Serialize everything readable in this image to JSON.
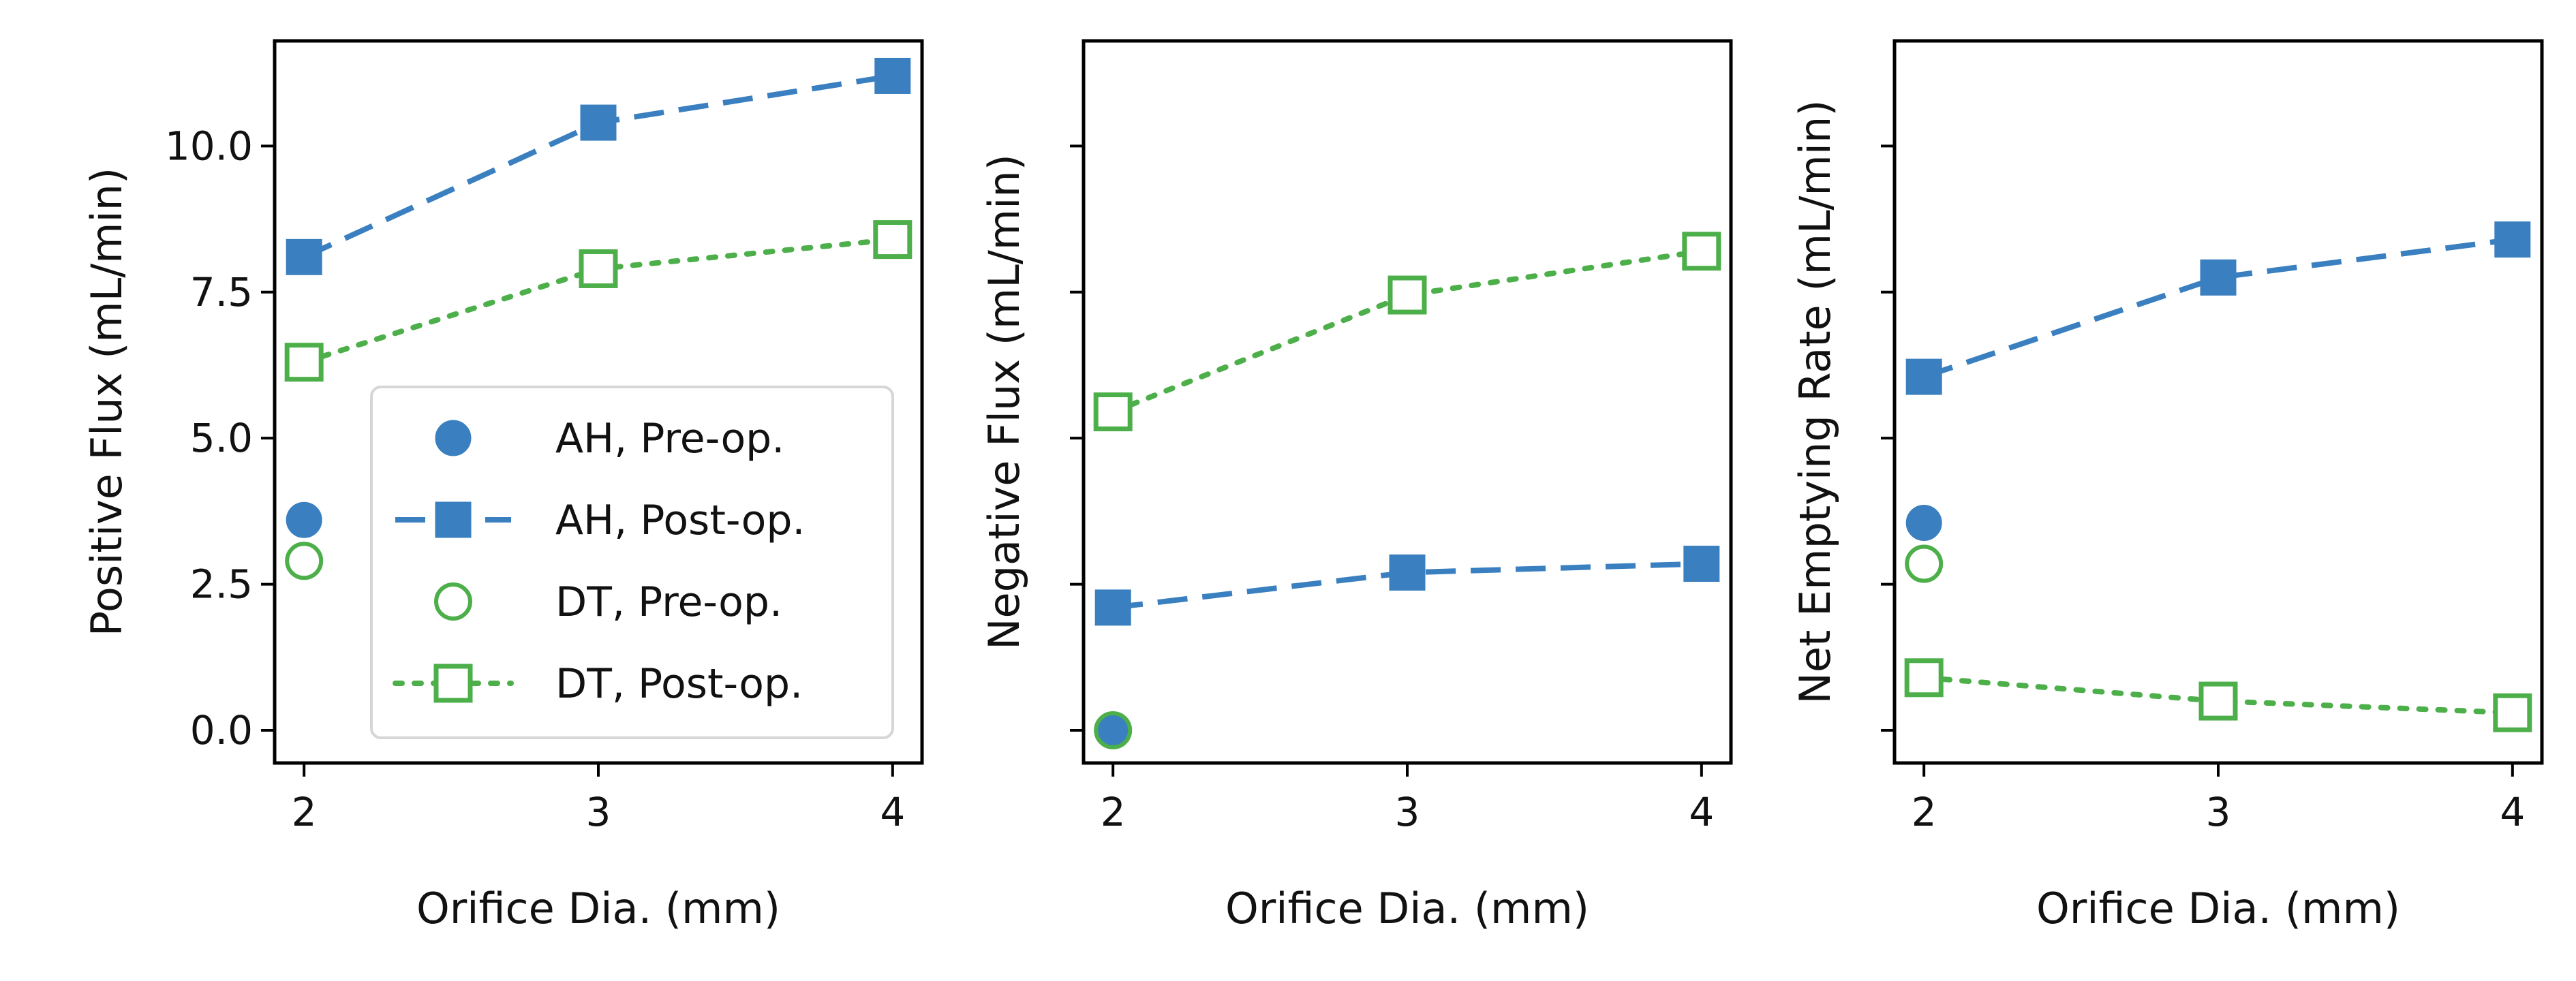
{
  "colors": {
    "ah": "#3a7fbf",
    "dt": "#4daf4a",
    "axis": "#000000"
  },
  "legend": {
    "placement": "lower-right",
    "entries": [
      {
        "label": "AH, Pre-op.",
        "color": "#3a7fbf",
        "marker": "circle",
        "fill": true,
        "line": "none"
      },
      {
        "label": "AH, Post-op.",
        "color": "#3a7fbf",
        "marker": "square",
        "fill": true,
        "line": "dashed"
      },
      {
        "label": "DT, Pre-op.",
        "color": "#4daf4a",
        "marker": "circle",
        "fill": false,
        "line": "none"
      },
      {
        "label": "DT, Post-op.",
        "color": "#4daf4a",
        "marker": "square",
        "fill": false,
        "line": "dotted"
      }
    ]
  },
  "chart_data": [
    {
      "type": "line",
      "xlabel": "Orifice Dia. (mm)",
      "ylabel": "Positive Flux (mL/min)",
      "x_ticks": [
        "2",
        "3",
        "4"
      ],
      "y_ticks": [
        "0.0",
        "2.5",
        "5.0",
        "7.5",
        "10.0"
      ],
      "xlim": [
        1.9,
        4.1
      ],
      "ylim": [
        -0.56,
        11.8
      ],
      "grid": false,
      "series": [
        {
          "name": "AH, Pre-op.",
          "x": [
            2
          ],
          "y": [
            3.6
          ]
        },
        {
          "name": "AH, Post-op.",
          "x": [
            2,
            3,
            4
          ],
          "y": [
            8.1,
            10.4,
            11.2
          ]
        },
        {
          "name": "DT, Pre-op.",
          "x": [
            2
          ],
          "y": [
            2.9
          ]
        },
        {
          "name": "DT, Post-op.",
          "x": [
            2,
            3,
            4
          ],
          "y": [
            6.3,
            7.9,
            8.4
          ]
        }
      ]
    },
    {
      "type": "line",
      "xlabel": "Orifice Dia. (mm)",
      "ylabel": "Negative Flux (mL/min)",
      "x_ticks": [
        "2",
        "3",
        "4"
      ],
      "y_ticks": [
        "",
        "",
        "",
        "",
        ""
      ],
      "xlim": [
        1.9,
        4.1
      ],
      "ylim": [
        -0.56,
        11.8
      ],
      "grid": false,
      "series": [
        {
          "name": "AH, Pre-op.",
          "x": [
            2
          ],
          "y": [
            0.0
          ]
        },
        {
          "name": "AH, Post-op.",
          "x": [
            2,
            3,
            4
          ],
          "y": [
            2.1,
            2.7,
            2.85
          ]
        },
        {
          "name": "DT, Pre-op.",
          "x": [
            2
          ],
          "y": [
            0.0
          ]
        },
        {
          "name": "DT, Post-op.",
          "x": [
            2,
            3,
            4
          ],
          "y": [
            5.45,
            7.45,
            8.2
          ]
        }
      ]
    },
    {
      "type": "line",
      "xlabel": "Orifice Dia. (mm)",
      "ylabel": "Net Emptying Rate (mL/min)",
      "x_ticks": [
        "2",
        "3",
        "4"
      ],
      "y_ticks": [
        "",
        "",
        "",
        "",
        ""
      ],
      "xlim": [
        1.9,
        4.1
      ],
      "ylim": [
        -0.56,
        11.8
      ],
      "grid": false,
      "series": [
        {
          "name": "AH, Pre-op.",
          "x": [
            2
          ],
          "y": [
            3.55
          ]
        },
        {
          "name": "AH, Post-op.",
          "x": [
            2,
            3,
            4
          ],
          "y": [
            6.05,
            7.75,
            8.4
          ]
        },
        {
          "name": "DT, Pre-op.",
          "x": [
            2
          ],
          "y": [
            2.85
          ]
        },
        {
          "name": "DT, Post-op.",
          "x": [
            2,
            3,
            4
          ],
          "y": [
            0.9,
            0.5,
            0.3
          ]
        }
      ]
    }
  ]
}
